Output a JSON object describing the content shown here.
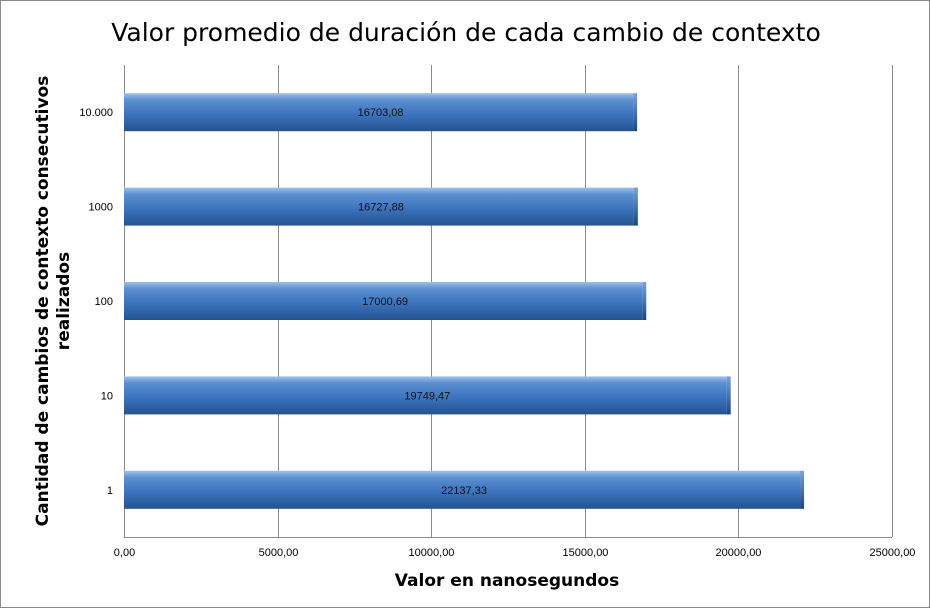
{
  "chart_data": {
    "type": "bar",
    "orientation": "horizontal",
    "title": "Valor promedio de duración de cada cambio de contexto",
    "xlabel": "Valor en nanosegundos",
    "ylabel": [
      "Cantidad de cambios de contexto consecutivos",
      "realizados"
    ],
    "categories": [
      "1",
      "10",
      "100",
      "1000",
      "10.000"
    ],
    "values": [
      22137.33,
      19749.47,
      17000.69,
      16727.88,
      16703.08
    ],
    "data_labels": [
      "22137,33",
      "19749,47",
      "17000,69",
      "16727,88",
      "16703,08"
    ],
    "xlim": [
      0,
      25000
    ],
    "xticks": [
      0,
      5000,
      10000,
      15000,
      20000,
      25000
    ],
    "xtick_labels": [
      "0,00",
      "5000,00",
      "10000,00",
      "15000,00",
      "20000,00",
      "25000,00"
    ],
    "grid": "vertical",
    "legend": "none",
    "colors": {
      "bar": "#4f81bd",
      "bar_dark": "#1f4e86",
      "bar_light": "#8fb4e3"
    }
  }
}
